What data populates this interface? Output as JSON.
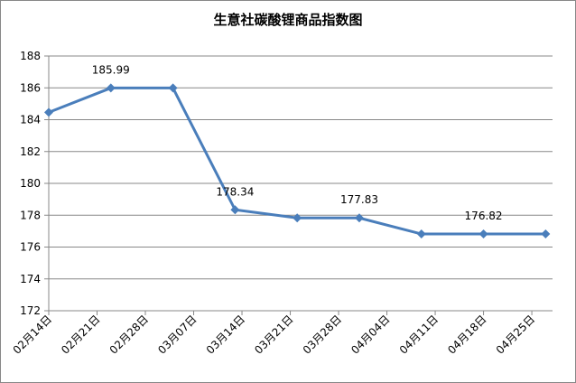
{
  "chart_data": {
    "type": "line",
    "title": "生意社碳酸锂商品指数图",
    "x": [
      0,
      9,
      18,
      27,
      36,
      45,
      54,
      63,
      72
    ],
    "xlim": [
      0,
      73
    ],
    "xticks": [
      {
        "value": 0,
        "label": "02月14日"
      },
      {
        "value": 7,
        "label": "02月21日"
      },
      {
        "value": 14,
        "label": "02月28日"
      },
      {
        "value": 21,
        "label": "03月07日"
      },
      {
        "value": 28,
        "label": "03月14日"
      },
      {
        "value": 35,
        "label": "03月21日"
      },
      {
        "value": 42,
        "label": "03月28日"
      },
      {
        "value": 49,
        "label": "04月04日"
      },
      {
        "value": 56,
        "label": "04月11日"
      },
      {
        "value": 63,
        "label": "04月18日"
      },
      {
        "value": 70,
        "label": "04月25日"
      }
    ],
    "ylim": [
      172,
      188
    ],
    "yticks": [
      172,
      174,
      176,
      178,
      180,
      182,
      184,
      186,
      188
    ],
    "grid": true,
    "series": [
      {
        "color": "#4a7ebb",
        "values": [
          184.46,
          185.99,
          185.99,
          178.34,
          177.83,
          177.83,
          176.82,
          176.82,
          176.82
        ],
        "value_labels": [
          null,
          "185.99",
          null,
          "178.34",
          null,
          "177.83",
          null,
          "176.82",
          null
        ]
      }
    ]
  }
}
